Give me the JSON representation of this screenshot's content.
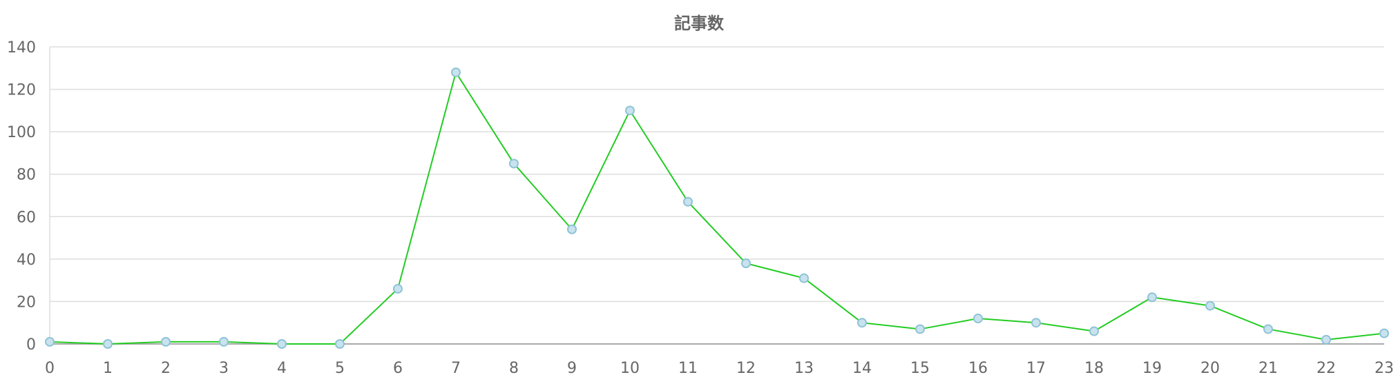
{
  "chart_data": {
    "type": "line",
    "title": "記事数",
    "xlabel": "",
    "ylabel": "",
    "x": [
      "0",
      "1",
      "2",
      "3",
      "4",
      "5",
      "6",
      "7",
      "8",
      "9",
      "10",
      "11",
      "12",
      "13",
      "14",
      "15",
      "16",
      "17",
      "18",
      "19",
      "20",
      "21",
      "22",
      "23"
    ],
    "series": [
      {
        "values": [
          1,
          0,
          1,
          1,
          0,
          0,
          26,
          128,
          85,
          54,
          110,
          67,
          38,
          31,
          10,
          7,
          12,
          10,
          6,
          22,
          18,
          7,
          2,
          5
        ]
      }
    ],
    "yticks": [
      "0",
      "20",
      "40",
      "60",
      "80",
      "100",
      "120",
      "140"
    ],
    "ylim": [
      0,
      140
    ],
    "grid": "horizontal",
    "legend": "none",
    "colors": {
      "line": "#22cc22",
      "marker_fill": "#c9e3ee",
      "marker_stroke": "#8fc3d6",
      "grid": "#dddddd",
      "axis": "#aaaaaa",
      "text": "#666666"
    }
  }
}
